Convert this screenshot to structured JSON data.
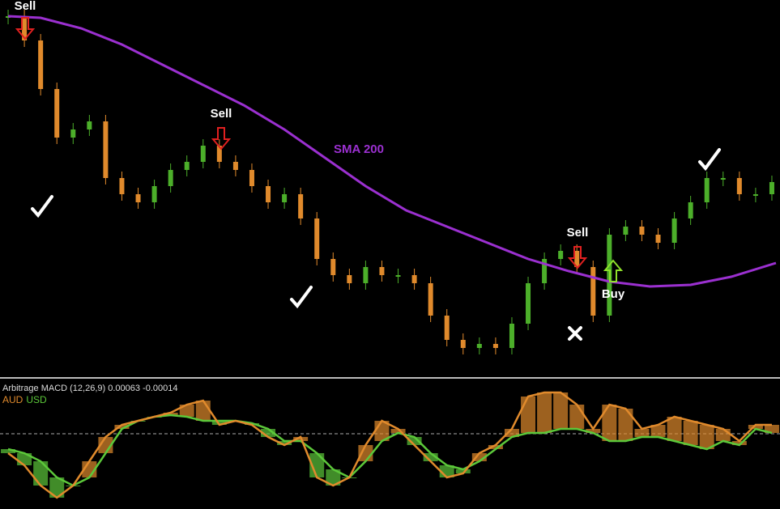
{
  "chart_data": [
    {
      "type": "candle",
      "colors": {
        "up": "#4caf2a",
        "down": "#e08a2c"
      },
      "series": [
        {
          "name": "Price",
          "values": [
            440,
            410,
            350,
            290,
            300,
            310,
            240,
            220,
            210,
            230,
            250,
            260,
            280,
            260,
            250,
            230,
            210,
            220,
            190,
            140,
            120,
            110,
            130,
            120,
            120,
            110,
            70,
            40,
            30,
            35,
            30,
            60,
            110,
            140,
            150,
            130,
            70,
            170,
            180,
            170,
            160,
            190,
            210,
            240,
            240,
            220,
            220,
            235
          ]
        },
        {
          "name": "SMA 200",
          "color": "#9b30d0",
          "x": [
            0,
            2,
            4.5,
            7,
            9.5,
            12,
            14.5,
            17,
            19.5,
            22,
            24.5,
            27,
            29.5,
            32,
            34.5,
            37,
            39.5,
            42,
            44.5,
            47.25
          ],
          "values": [
            440,
            438,
            425,
            405,
            380,
            355,
            330,
            300,
            265,
            230,
            200,
            180,
            160,
            140,
            125,
            112,
            106,
            108,
            118,
            135
          ]
        }
      ],
      "annotations": [
        "Sell",
        "Sell",
        "Sell",
        "Buy"
      ],
      "xlim": [
        -0.5,
        47.5
      ],
      "ylim": [
        0,
        460
      ]
    },
    {
      "type": "macd",
      "title": "Arbitrage MACD (12,26,9) 0.00063 -0.00014",
      "zero_line": true,
      "series": [
        {
          "name": "AUD",
          "color": "#e08a2c",
          "values": [
            -24,
            -39,
            -64,
            -79,
            -64,
            -34,
            -4,
            11,
            16,
            21,
            26,
            36,
            41,
            11,
            16,
            11,
            -4,
            -14,
            -4,
            -54,
            -64,
            -54,
            -14,
            16,
            6,
            -14,
            -34,
            -54,
            -49,
            -24,
            -14,
            6,
            46,
            51,
            51,
            36,
            6,
            36,
            31,
            6,
            11,
            21,
            16,
            11,
            6,
            -9,
            11,
            11
          ]
        },
        {
          "name": "USD",
          "color": "#5cc83a",
          "values": [
            -19,
            -24,
            -34,
            -54,
            -64,
            -54,
            -24,
            6,
            16,
            21,
            23,
            21,
            16,
            16,
            16,
            13,
            6,
            -9,
            -9,
            -24,
            -44,
            -54,
            -34,
            -9,
            1,
            -4,
            -24,
            -39,
            -44,
            -34,
            -19,
            -4,
            1,
            1,
            6,
            6,
            1,
            -9,
            -9,
            -4,
            -4,
            -9,
            -14,
            -19,
            -9,
            -14,
            6,
            1
          ]
        }
      ],
      "xlim": [
        -0.5,
        47.5
      ],
      "ylim": [
        -93,
        66
      ]
    }
  ]
}
